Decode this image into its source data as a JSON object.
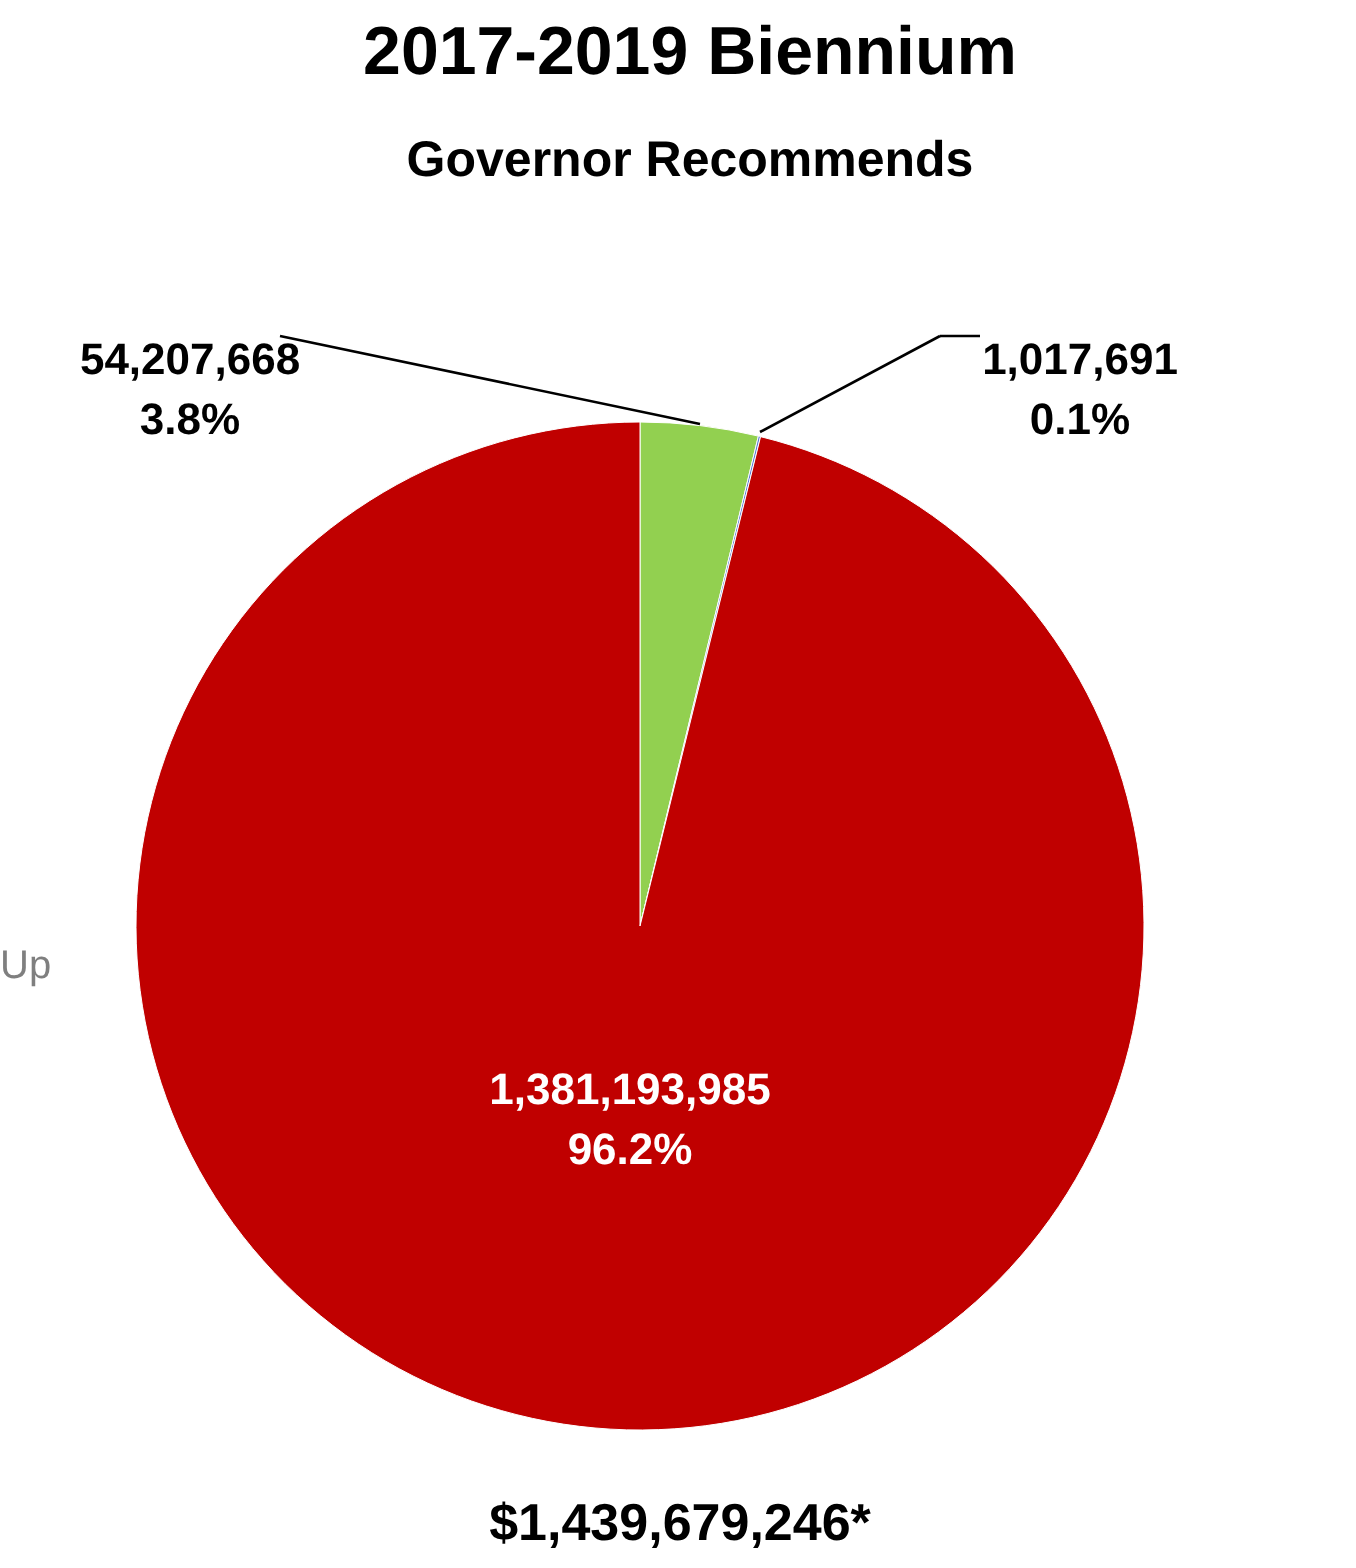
{
  "chart_data": {
    "type": "pie",
    "title": "2017-2019 Biennium",
    "subtitle": "Governor Recommends",
    "categories": [
      null,
      null,
      null
    ],
    "values": [
      54207668,
      1017691,
      1381193985
    ],
    "colors": [
      "#92d050",
      "#5b7bd5",
      "#c00000"
    ],
    "value_labels": [
      "54,207,668\n3.8%",
      "1,017,691\n0.1%",
      "1,381,193,985\n96.2%"
    ],
    "annotations": [
      "$1,439,679,246*",
      "Up"
    ]
  }
}
